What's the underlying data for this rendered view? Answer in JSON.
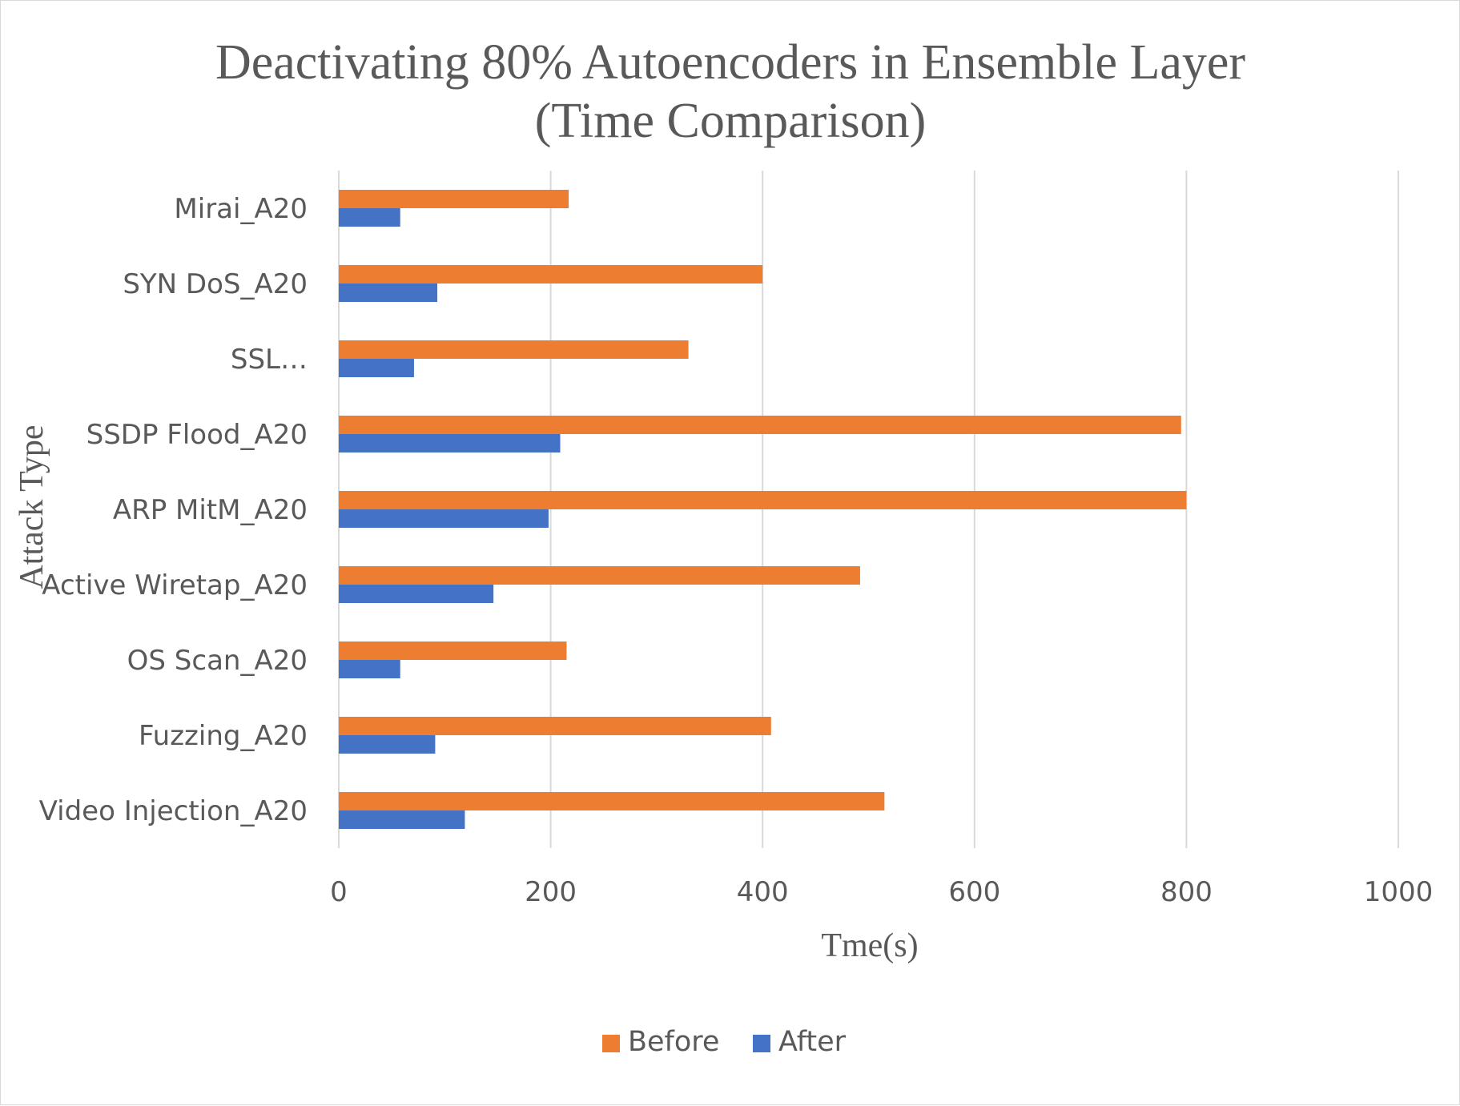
{
  "chart_data": {
    "type": "bar",
    "orientation": "horizontal",
    "title": "Deactivating 80% Autoencoders in Ensemble Layer (Time Comparison)",
    "title_lines": [
      "Deactivating 80% Autoencoders in Ensemble Layer",
      "(Time Comparison)"
    ],
    "xlabel": "Tme(s)",
    "ylabel": "Attack Type",
    "xlim": [
      0,
      1000
    ],
    "xticks": [
      "0",
      "200",
      "400",
      "600",
      "800",
      "1000"
    ],
    "grid": true,
    "legend_position": "bottom",
    "categories": [
      "Mirai_A20",
      "SYN DoS_A20",
      "SSL…",
      "SSDP Flood_A20",
      "ARP MitM_A20",
      "Active Wiretap_A20",
      "OS Scan_A20",
      "Fuzzing_A20",
      "Video Injection_A20"
    ],
    "series": [
      {
        "name": "Before",
        "color": "#ED7D31",
        "values": [
          217,
          400,
          330,
          795,
          800,
          492,
          215,
          408,
          515
        ]
      },
      {
        "name": "After",
        "color": "#4472C4",
        "values": [
          58,
          93,
          71,
          209,
          198,
          146,
          58,
          91,
          119
        ]
      }
    ]
  }
}
